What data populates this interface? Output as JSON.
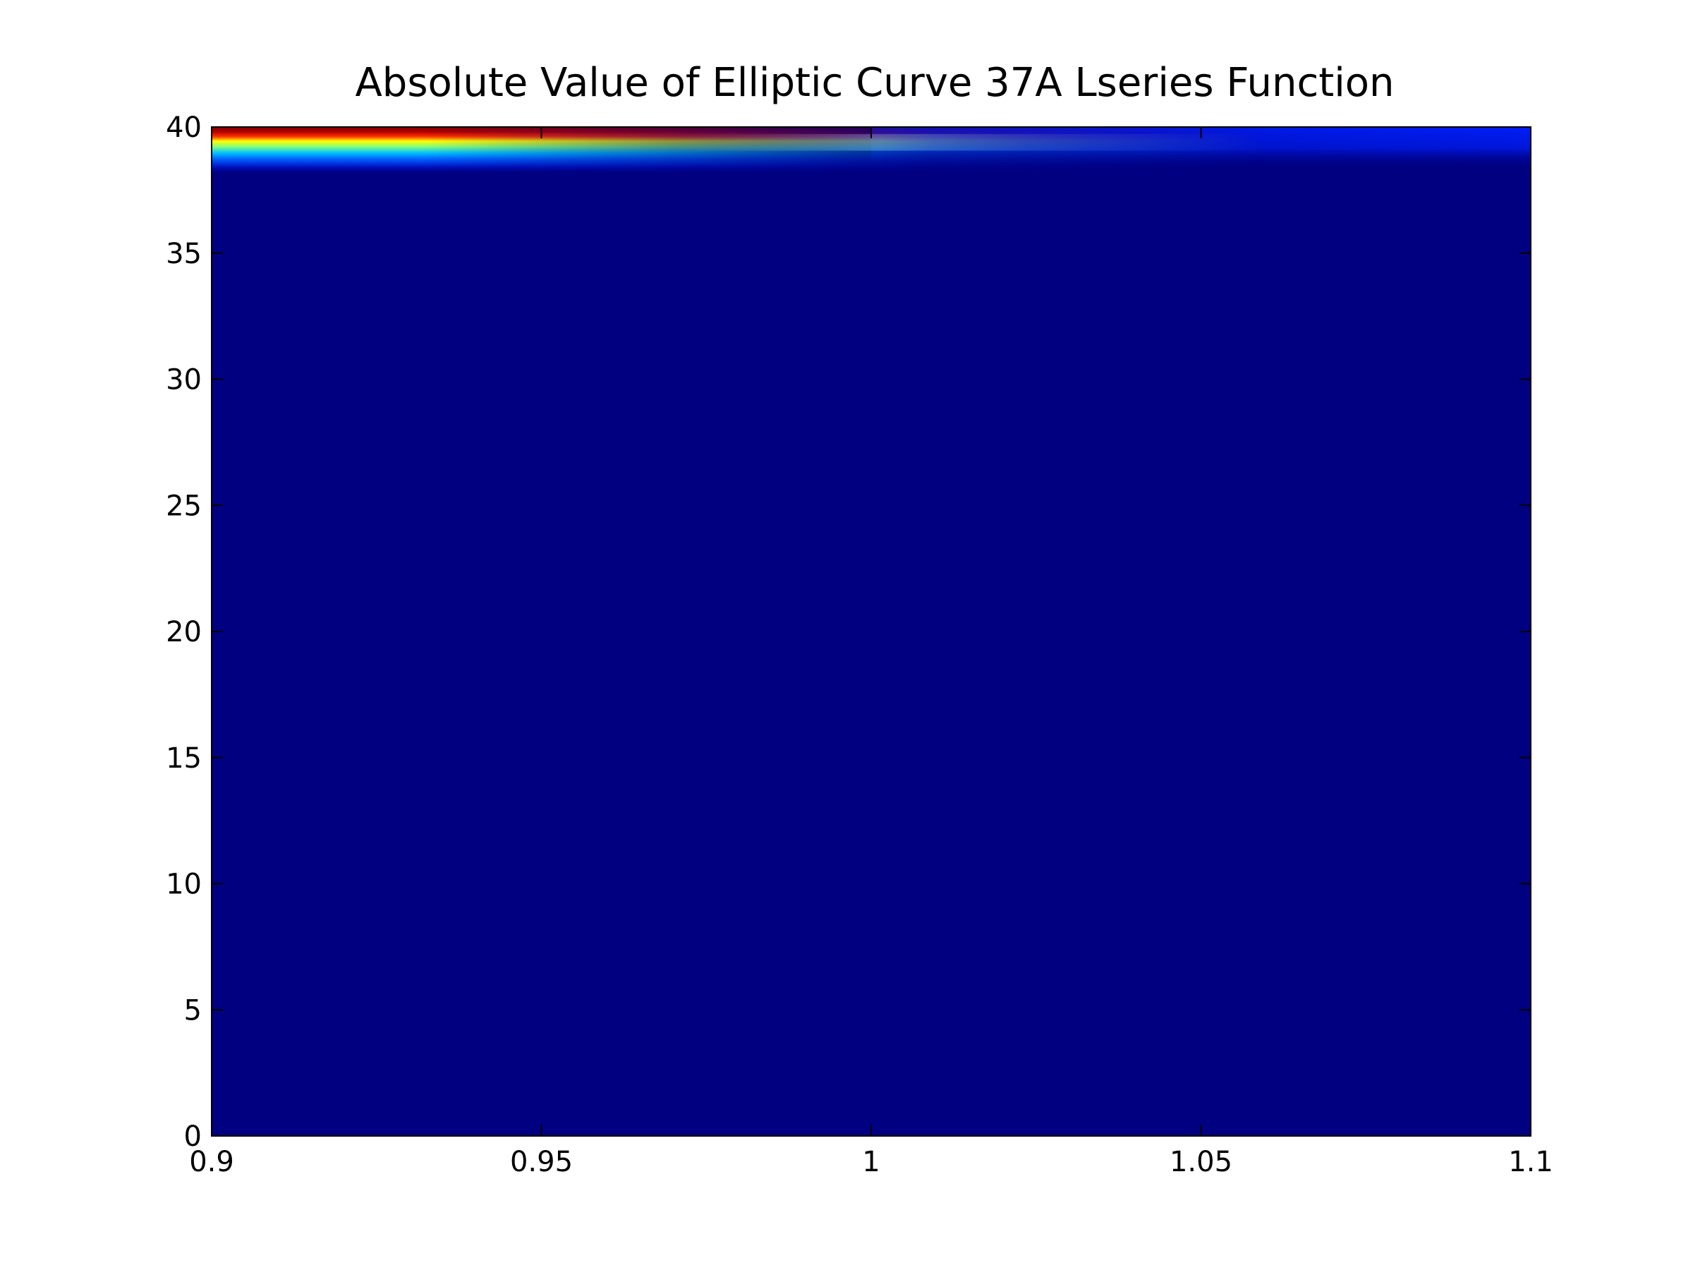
{
  "chart_data": {
    "type": "heatmap",
    "title": "Absolute Value of Elliptic Curve 37A Lseries Function",
    "xlabel": "",
    "ylabel": "",
    "xlim": [
      0.9,
      1.1
    ],
    "ylim": [
      0,
      40
    ],
    "x_ticks": [
      {
        "value": 0.9,
        "label": "0.9"
      },
      {
        "value": 0.95,
        "label": "0.95"
      },
      {
        "value": 1.0,
        "label": "1"
      },
      {
        "value": 1.05,
        "label": "1.05"
      },
      {
        "value": 1.1,
        "label": "1.1"
      }
    ],
    "y_ticks": [
      {
        "value": 0,
        "label": "0"
      },
      {
        "value": 5,
        "label": "5"
      },
      {
        "value": 10,
        "label": "10"
      },
      {
        "value": 15,
        "label": "15"
      },
      {
        "value": 20,
        "label": "20"
      },
      {
        "value": 25,
        "label": "25"
      },
      {
        "value": 30,
        "label": "30"
      },
      {
        "value": 35,
        "label": "35"
      },
      {
        "value": 40,
        "label": "40"
      }
    ],
    "grid": false,
    "colormap": "jet",
    "colormap_stops": [
      "#00007f",
      "#0000ff",
      "#007fff",
      "#7fff7f",
      "#ffff00",
      "#ff7f00",
      "#ff0000",
      "#7f0000"
    ],
    "background_color": "#000080",
    "description_values": {
      "hot_band_y_range": [
        38.5,
        40
      ],
      "hot_band_x_range": [
        0.9,
        0.99
      ]
    }
  }
}
